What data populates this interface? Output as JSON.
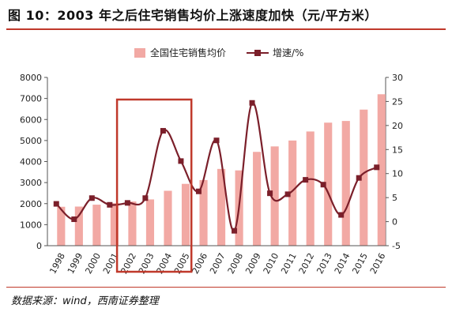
{
  "header": {
    "title": "图 10：2003 年之后住宅销售均价上涨速度加快（元/平方米）"
  },
  "footer": {
    "source": "数据来源：wind，西南证券整理"
  },
  "colors": {
    "bar": "#f2a9a4",
    "line": "#7b1f2a",
    "highlight": "#c0392b",
    "axis": "#555555",
    "title_rule": "#c0392b"
  },
  "highlight_box": {
    "from_category": "2002",
    "to_category": "2005"
  },
  "chart_data": {
    "type": "bar",
    "categories": [
      "1998",
      "1999",
      "2000",
      "2001",
      "2002",
      "2003",
      "2004",
      "2005",
      "2006",
      "2007",
      "2008",
      "2009",
      "2010",
      "2011",
      "2012",
      "2013",
      "2014",
      "2015",
      "2016"
    ],
    "series": [
      {
        "name": "全国住宅销售均价",
        "type": "bar",
        "axis": "left",
        "values": [
          1850,
          1860,
          1950,
          2020,
          2100,
          2200,
          2610,
          2940,
          3120,
          3650,
          3580,
          4460,
          4720,
          5000,
          5430,
          5850,
          5930,
          6470,
          7200
        ]
      },
      {
        "name": "增速/%",
        "type": "line",
        "axis": "right",
        "values": [
          3.7,
          0.5,
          4.9,
          3.5,
          3.9,
          4.9,
          18.9,
          12.6,
          6.3,
          16.9,
          -1.9,
          24.7,
          5.9,
          5.7,
          8.7,
          7.7,
          1.4,
          9.1,
          11.3
        ]
      }
    ],
    "yaxis_left": {
      "min": 0,
      "max": 8000,
      "step": 1000,
      "ticks": [
        "0",
        "1000",
        "2000",
        "3000",
        "4000",
        "5000",
        "6000",
        "7000",
        "8000"
      ]
    },
    "yaxis_right": {
      "min": -5,
      "max": 30,
      "step": 5,
      "ticks": [
        "-5",
        "0",
        "5",
        "10",
        "15",
        "20",
        "25",
        "30"
      ]
    },
    "xlabel": "",
    "ylabel": "",
    "legend_position": "top-center",
    "grid": false
  }
}
